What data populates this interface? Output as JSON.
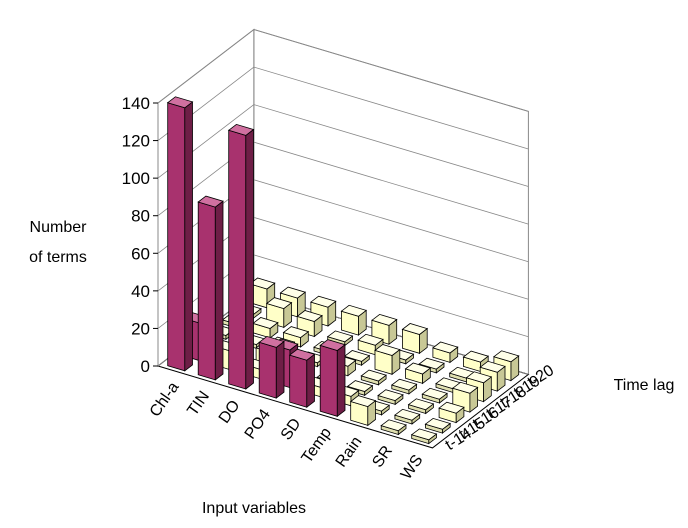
{
  "chart_data": {
    "type": "bar3d",
    "ylabel_lines": [
      "Number",
      "of terms"
    ],
    "xlabel": "Input variables",
    "zlabel": "Time lag",
    "categories": [
      "Chl-a",
      "TIN",
      "DO",
      "PO4",
      "SD",
      "Temp",
      "Rain",
      "SR",
      "WS"
    ],
    "lags": [
      "t-14",
      "t-15",
      "t-16",
      "t-17",
      "t-18",
      "t-19",
      "t-20"
    ],
    "ylim": [
      0,
      140
    ],
    "yticks": [
      0,
      20,
      40,
      60,
      80,
      100,
      120,
      140
    ],
    "grid": true,
    "colors": {
      "high": "#a8326e",
      "low": "#ffffc8",
      "floor": "#e0e0b0",
      "line": "#000000",
      "grid": "#888888"
    },
    "values": [
      [
        140,
        20,
        5,
        2,
        2,
        2,
        10
      ],
      [
        92,
        10,
        2,
        2,
        5,
        10,
        10
      ],
      [
        135,
        5,
        8,
        5,
        5,
        8,
        10
      ],
      [
        27,
        20,
        2,
        2,
        2,
        2,
        10
      ],
      [
        25,
        5,
        2,
        5,
        2,
        5,
        10
      ],
      [
        35,
        5,
        2,
        2,
        10,
        2,
        10
      ],
      [
        10,
        2,
        2,
        2,
        5,
        2,
        5
      ],
      [
        2,
        2,
        2,
        2,
        2,
        2,
        5
      ],
      [
        2,
        2,
        5,
        10,
        10,
        10,
        10
      ]
    ]
  }
}
